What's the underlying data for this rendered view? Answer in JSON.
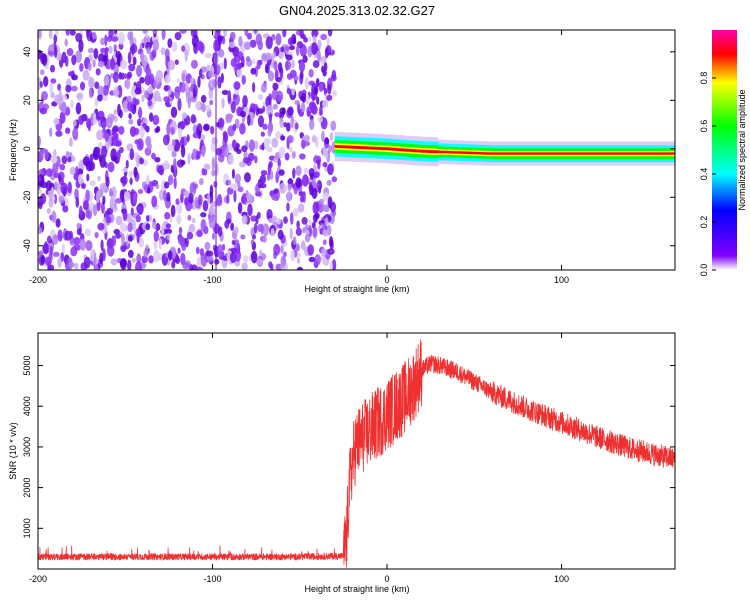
{
  "title": "GN04.2025.313.02.32.G27",
  "chart_data": [
    {
      "type": "heatmap",
      "title": "GN04.2025.313.02.32.G27",
      "xlabel": "Height of straight line (km)",
      "ylabel": "Frequency (Hz)",
      "xlim": [
        -200,
        165
      ],
      "ylim": [
        -50,
        49
      ],
      "xticks": [
        -200,
        -100,
        0,
        100
      ],
      "yticks": [
        -40,
        -20,
        0,
        20,
        40
      ],
      "noise_region_x": [
        -200,
        -30
      ],
      "signal_track": {
        "x_start": -30,
        "x_end": 165,
        "frequency_hz": [
          {
            "x": -30,
            "f": 1
          },
          {
            "x": 0,
            "f": 0
          },
          {
            "x": 20,
            "f": -1
          },
          {
            "x": 60,
            "f": -2
          },
          {
            "x": 165,
            "f": -2
          }
        ]
      },
      "colorbar": {
        "label": "Normalized spectral amplitude",
        "range": [
          0.0,
          1.0
        ],
        "ticks": [
          "0.0",
          "0.2",
          "0.4",
          "0.6",
          "0.8"
        ],
        "colormap": [
          "#ff00aa",
          "#ff0000",
          "#ffff00",
          "#00ff00",
          "#00ffff",
          "#0000ff",
          "#8000ff",
          "#ffffff"
        ]
      }
    },
    {
      "type": "line",
      "xlabel": "Height of straight line (km)",
      "ylabel": "SNR (10 * v/v)",
      "xlim": [
        -200,
        165
      ],
      "ylim": [
        0,
        5800
      ],
      "xticks": [
        -200,
        -100,
        0,
        100
      ],
      "yticks": [
        1000,
        2000,
        3000,
        4000,
        5000
      ],
      "line_color": "#f03030",
      "series": [
        {
          "name": "SNR",
          "x": [
            -200,
            -150,
            -100,
            -50,
            -25,
            -23,
            -22,
            -20,
            -18,
            -15,
            -10,
            -5,
            0,
            5,
            10,
            15,
            20,
            25,
            30,
            40,
            50,
            60,
            80,
            100,
            120,
            140,
            165
          ],
          "y": [
            300,
            300,
            300,
            300,
            320,
            800,
            1800,
            2600,
            3000,
            3200,
            3400,
            3600,
            3800,
            4000,
            4200,
            4500,
            4900,
            5050,
            5000,
            4850,
            4600,
            4350,
            3950,
            3600,
            3250,
            2950,
            2700
          ]
        }
      ]
    }
  ]
}
